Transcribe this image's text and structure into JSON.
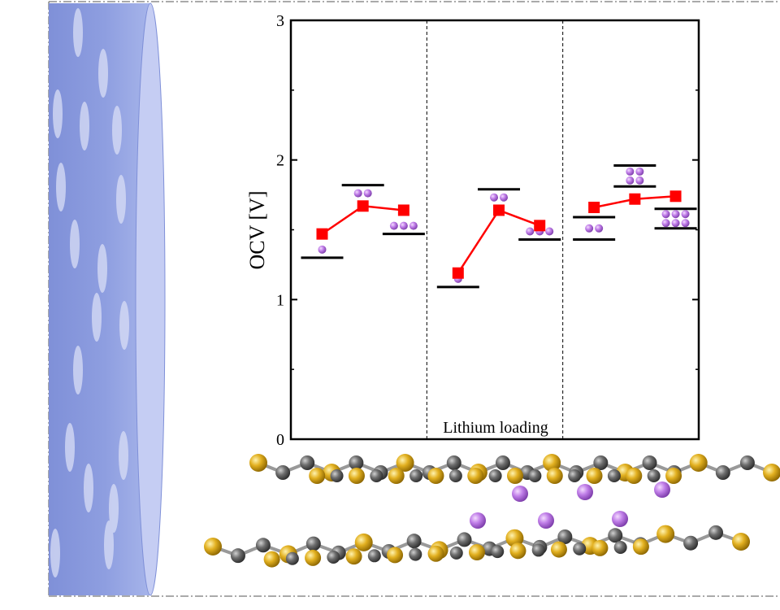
{
  "chart_data": {
    "type": "line",
    "title": "",
    "xlabel": "Lithium loading",
    "ylabel": "OCV [V]",
    "ylim": [
      0,
      3
    ],
    "yticks": [
      "0",
      "1",
      "2",
      "3"
    ],
    "grid": false,
    "legend": "none",
    "panels": 3,
    "series": [
      {
        "panel": 1,
        "values": [
          1.47,
          1.67,
          1.64
        ],
        "reference_levels": [
          1.3,
          1.82,
          1.47
        ],
        "li_atoms": [
          1,
          2,
          3
        ]
      },
      {
        "panel": 2,
        "values": [
          1.19,
          1.64,
          1.53
        ],
        "reference_levels": [
          1.09,
          1.79,
          1.43
        ],
        "li_atoms": [
          1,
          2,
          3
        ]
      },
      {
        "panel": 3,
        "values": [
          1.66,
          1.72,
          1.74
        ],
        "reference_levels": [
          1.43,
          1.59,
          1.81,
          1.96,
          1.65,
          1.51
        ],
        "li_atoms": [
          2,
          4,
          6
        ]
      }
    ],
    "colors": {
      "series": "#ff0000",
      "marker": "#ff0000",
      "reference_level": "#000000",
      "li_atom": "#c07ee8",
      "cylinder": "#8e9ee0",
      "sulfur": "#e2b020",
      "carbon": "#6e6e6e"
    }
  },
  "icons": {
    "cylinder": "pore-cylinder-illustration",
    "structure": "bilayer-lattice-with-lithium-illustration"
  }
}
